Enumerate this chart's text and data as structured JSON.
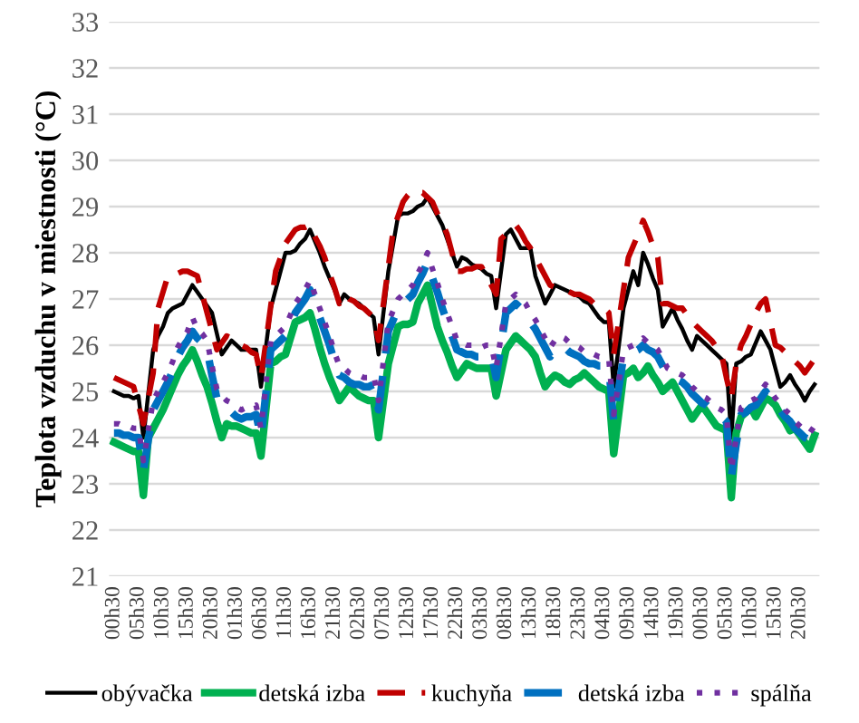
{
  "chart_data": {
    "type": "line",
    "ylabel": "Teplota vzduchu v miestnosti (°C)",
    "ylim": [
      21,
      33
    ],
    "yticks": [
      21,
      22,
      23,
      24,
      25,
      26,
      27,
      28,
      29,
      30,
      31,
      32,
      33
    ],
    "categories": [
      "00h30",
      null,
      null,
      null,
      null,
      "05h30",
      null,
      null,
      null,
      null,
      "10h30",
      null,
      null,
      null,
      null,
      "15h30",
      null,
      null,
      null,
      null,
      "20h30",
      null,
      null,
      null,
      null,
      "01h30",
      null,
      null,
      null,
      null,
      "06h30",
      null,
      null,
      null,
      null,
      "11h30",
      null,
      null,
      null,
      null,
      "16h30",
      null,
      null,
      null,
      null,
      "21h30",
      null,
      null,
      null,
      null,
      "02h30",
      null,
      null,
      null,
      null,
      "07h30",
      null,
      null,
      null,
      null,
      "12h30",
      null,
      null,
      null,
      null,
      "17h30",
      null,
      null,
      null,
      null,
      "22h30",
      null,
      null,
      null,
      null,
      "03h30",
      null,
      null,
      null,
      null,
      "08h30",
      null,
      null,
      null,
      null,
      "13h30",
      null,
      null,
      null,
      null,
      "18h30",
      null,
      null,
      null,
      null,
      "23h30",
      null,
      null,
      null,
      null,
      "04h30",
      null,
      null,
      null,
      null,
      "09h30",
      null,
      null,
      null,
      null,
      "14h30",
      null,
      null,
      null,
      null,
      "19h30",
      null,
      null,
      null,
      null,
      "00h30",
      null,
      null,
      null,
      null,
      "05h30",
      null,
      null,
      null,
      null,
      "10h30",
      null,
      null,
      null,
      null,
      "15h30",
      null,
      null,
      null,
      null,
      "20h30",
      null,
      null,
      null
    ],
    "grid": "y",
    "legend": "bottom",
    "marker": "none",
    "series": [
      {
        "name": "obývačka",
        "color": "#000000",
        "line_style": "solid",
        "values": [
          25.0,
          24.95,
          24.9,
          24.9,
          24.85,
          24.9,
          24.0,
          24.95,
          25.9,
          26.2,
          26.4,
          26.7,
          26.8,
          26.85,
          26.9,
          27.1,
          27.3,
          27.15,
          27.0,
          26.85,
          26.7,
          26.25,
          25.8,
          25.95,
          26.1,
          26.0,
          25.9,
          25.9,
          25.9,
          25.9,
          25.1,
          25.95,
          26.8,
          27.2,
          27.6,
          28.0,
          28.0,
          28.05,
          28.2,
          28.3,
          28.5,
          28.25,
          28.0,
          27.7,
          27.45,
          27.2,
          26.9,
          27.1,
          27.0,
          26.95,
          26.9,
          26.8,
          26.7,
          26.6,
          25.8,
          26.7,
          27.6,
          28.2,
          28.8,
          28.85,
          28.85,
          28.9,
          29.0,
          29.05,
          29.2,
          29.0,
          28.8,
          28.6,
          28.3,
          28.0,
          27.7,
          27.9,
          27.85,
          27.75,
          27.7,
          27.65,
          27.55,
          27.5,
          26.8,
          27.6,
          28.4,
          28.5,
          28.3,
          28.1,
          28.1,
          28.1,
          27.5,
          27.2,
          26.9,
          27.1,
          27.3,
          27.25,
          27.2,
          27.15,
          27.1,
          27.05,
          26.95,
          26.9,
          26.75,
          26.6,
          26.5,
          26.5,
          25.1,
          25.95,
          26.8,
          27.2,
          27.6,
          27.3,
          28.0,
          27.75,
          27.45,
          27.2,
          26.4,
          26.6,
          26.8,
          26.55,
          26.35,
          26.1,
          25.9,
          26.2,
          26.1,
          26.0,
          25.9,
          25.8,
          25.7,
          25.6,
          24.0,
          25.6,
          25.65,
          25.75,
          25.8,
          26.05,
          26.3,
          26.1,
          25.9,
          25.5,
          25.1,
          25.2,
          25.35,
          25.15,
          25.0,
          24.8,
          25.0,
          25.15
        ]
      },
      {
        "name": "detská izba",
        "color": "#00b050",
        "line_style": "solid",
        "values": [
          23.9,
          23.85,
          23.8,
          23.75,
          23.7,
          23.7,
          22.75,
          24.0,
          24.2,
          24.4,
          24.6,
          24.85,
          25.1,
          25.35,
          25.55,
          25.7,
          25.9,
          25.65,
          25.35,
          25.1,
          24.75,
          24.35,
          24.0,
          24.3,
          24.25,
          24.25,
          24.2,
          24.15,
          24.1,
          24.1,
          23.6,
          24.6,
          25.6,
          25.65,
          25.75,
          25.8,
          26.15,
          26.5,
          26.55,
          26.6,
          26.7,
          26.35,
          25.95,
          25.6,
          25.3,
          25.05,
          24.8,
          24.95,
          25.1,
          25.0,
          24.9,
          24.85,
          24.8,
          24.8,
          24.0,
          24.8,
          25.6,
          26.0,
          26.4,
          26.45,
          26.45,
          26.5,
          26.9,
          27.1,
          27.3,
          26.85,
          26.4,
          26.1,
          25.85,
          25.55,
          25.3,
          25.45,
          25.6,
          25.55,
          25.5,
          25.5,
          25.5,
          25.5,
          24.9,
          25.4,
          25.9,
          26.05,
          26.2,
          26.1,
          26.0,
          25.9,
          25.75,
          25.4,
          25.1,
          25.25,
          25.35,
          25.3,
          25.2,
          25.15,
          25.25,
          25.3,
          25.4,
          25.3,
          25.2,
          25.1,
          25.05,
          25.0,
          23.65,
          24.5,
          25.35,
          25.4,
          25.5,
          25.3,
          25.4,
          25.55,
          25.35,
          25.2,
          25.0,
          25.1,
          25.2,
          25.0,
          24.8,
          24.6,
          24.4,
          24.55,
          24.7,
          24.55,
          24.4,
          24.25,
          24.2,
          24.15,
          22.7,
          24.1,
          24.45,
          24.55,
          24.65,
          24.45,
          24.65,
          24.85,
          24.8,
          24.7,
          24.5,
          24.35,
          24.15,
          24.2,
          24.05,
          23.9,
          23.75,
          24.05
        ]
      },
      {
        "name": "kuchyňa",
        "color": "#c00000",
        "line_style": "dashed",
        "values": [
          25.3,
          25.25,
          25.2,
          25.15,
          25.1,
          24.7,
          24.3,
          24.85,
          25.4,
          26.8,
          27.15,
          27.5,
          27.55,
          27.55,
          27.6,
          27.6,
          27.55,
          27.5,
          27.1,
          26.7,
          26.3,
          25.9,
          26.05,
          26.2,
          26.15,
          26.05,
          26.0,
          25.95,
          25.85,
          25.8,
          25.3,
          26.05,
          26.85,
          27.6,
          27.9,
          28.2,
          28.35,
          28.5,
          28.55,
          28.55,
          28.6,
          28.35,
          28.15,
          27.9,
          27.55,
          27.25,
          26.9,
          27.1,
          27.0,
          26.95,
          26.85,
          26.8,
          26.7,
          26.6,
          26.1,
          26.9,
          27.7,
          28.5,
          28.8,
          29.1,
          29.25,
          29.35,
          29.3,
          29.3,
          29.2,
          29.1,
          28.85,
          28.65,
          28.4,
          28.0,
          27.6,
          27.6,
          27.65,
          27.65,
          27.7,
          27.7,
          27.5,
          27.3,
          27.1,
          28.3,
          28.4,
          28.5,
          28.6,
          28.45,
          28.25,
          28.1,
          27.9,
          27.7,
          27.5,
          27.3,
          27.25,
          27.2,
          27.2,
          27.15,
          27.1,
          27.1,
          27.05,
          27.0,
          26.9,
          26.85,
          26.8,
          26.7,
          25.8,
          26.5,
          27.2,
          27.9,
          28.15,
          28.4,
          28.7,
          28.45,
          28.15,
          27.9,
          26.9,
          26.9,
          26.85,
          26.8,
          26.8,
          26.65,
          26.5,
          26.4,
          26.3,
          26.2,
          26.1,
          25.95,
          25.8,
          25.3,
          24.85,
          25.6,
          26.0,
          26.2,
          26.45,
          26.7,
          26.9,
          27.0,
          26.5,
          26.0,
          25.95,
          25.85,
          25.8,
          25.65,
          25.55,
          25.4,
          25.55,
          25.7
        ]
      },
      {
        "name": "detská izba",
        "color": "#0070c0",
        "line_style": "dashed",
        "values": [
          24.1,
          24.1,
          24.05,
          24.05,
          24.0,
          24.0,
          23.3,
          23.95,
          24.6,
          24.8,
          25.0,
          25.2,
          25.45,
          25.75,
          25.95,
          26.1,
          26.3,
          26.15,
          26.05,
          25.9,
          25.35,
          24.85,
          24.7,
          24.6,
          24.55,
          24.45,
          24.4,
          24.45,
          24.45,
          24.5,
          24.0,
          24.95,
          25.9,
          26.0,
          26.1,
          26.2,
          26.45,
          26.7,
          26.85,
          27.0,
          27.2,
          26.9,
          26.6,
          26.3,
          26.0,
          25.65,
          25.35,
          25.3,
          25.2,
          25.15,
          25.15,
          25.1,
          25.1,
          25.15,
          24.6,
          25.45,
          26.3,
          26.55,
          26.8,
          26.9,
          27.0,
          27.1,
          27.35,
          27.55,
          27.8,
          27.45,
          27.15,
          26.8,
          26.5,
          26.2,
          25.9,
          25.85,
          25.8,
          25.8,
          25.75,
          25.75,
          25.8,
          25.8,
          25.3,
          26.0,
          26.7,
          26.8,
          26.9,
          26.8,
          26.7,
          26.5,
          26.35,
          26.15,
          25.95,
          25.75,
          25.9,
          26.0,
          25.95,
          25.85,
          25.8,
          25.75,
          25.65,
          25.6,
          25.6,
          25.55,
          25.55,
          25.5,
          24.35,
          25.05,
          25.75,
          25.8,
          25.85,
          25.9,
          26.0,
          25.9,
          25.85,
          25.75,
          25.55,
          25.35,
          25.3,
          25.25,
          25.2,
          25.1,
          24.95,
          24.85,
          24.75,
          24.7,
          24.6,
          24.5,
          24.45,
          24.35,
          23.15,
          23.85,
          24.5,
          24.55,
          24.65,
          24.7,
          24.85,
          25.0,
          24.85,
          24.7,
          24.6,
          24.45,
          24.35,
          24.2,
          24.1,
          24.0,
          23.95,
          24.1
        ]
      },
      {
        "name": "spálňa",
        "color": "#7030a0",
        "line_style": "dotted",
        "values": [
          24.3,
          24.3,
          24.25,
          24.25,
          24.2,
          24.2,
          23.5,
          24.15,
          24.8,
          25.0,
          25.2,
          25.4,
          25.65,
          25.95,
          26.15,
          26.3,
          26.6,
          26.35,
          26.25,
          26.1,
          25.55,
          25.05,
          24.9,
          24.8,
          24.75,
          24.65,
          24.6,
          24.65,
          24.65,
          24.7,
          24.2,
          25.15,
          26.1,
          26.2,
          26.3,
          26.4,
          26.65,
          26.9,
          27.05,
          27.2,
          27.4,
          27.1,
          26.8,
          26.5,
          26.2,
          25.85,
          25.55,
          25.5,
          25.4,
          25.35,
          25.35,
          25.3,
          25.3,
          25.35,
          24.8,
          25.65,
          26.5,
          26.75,
          27.0,
          27.1,
          27.2,
          27.3,
          27.55,
          27.75,
          28.0,
          27.65,
          27.35,
          27.0,
          26.7,
          26.4,
          26.1,
          26.05,
          26.0,
          26.0,
          25.95,
          25.95,
          26.0,
          26.0,
          25.5,
          26.2,
          26.9,
          27.0,
          27.1,
          27.0,
          26.9,
          26.7,
          26.55,
          26.35,
          26.15,
          25.95,
          26.1,
          26.2,
          26.15,
          26.05,
          26.0,
          25.95,
          25.85,
          25.8,
          25.8,
          25.75,
          25.75,
          25.7,
          24.5,
          25.2,
          25.9,
          25.95,
          26.0,
          26.05,
          26.15,
          26.05,
          26.0,
          25.9,
          25.7,
          25.5,
          25.45,
          25.4,
          25.35,
          25.25,
          25.1,
          25.0,
          24.9,
          24.85,
          24.75,
          24.65,
          24.6,
          24.5,
          23.3,
          24.0,
          24.65,
          24.7,
          24.8,
          24.85,
          25.0,
          25.15,
          25.0,
          24.85,
          24.75,
          24.6,
          24.5,
          24.35,
          24.25,
          24.15,
          24.1,
          24.25
        ]
      }
    ]
  }
}
